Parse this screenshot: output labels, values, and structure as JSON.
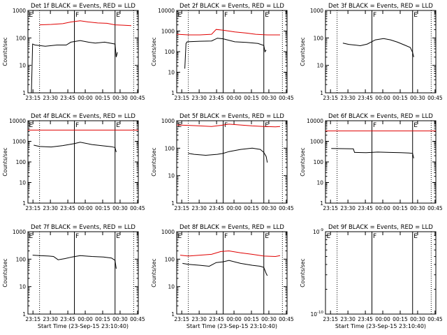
{
  "figure": {
    "background": "#ffffff",
    "axis_color": "#000000",
    "events_color": "#000000",
    "lld_color": "#e00000"
  },
  "chart_data": [
    {
      "type": "line",
      "title": "Det 1f BLACK = Events, RED = LLD",
      "xlabel": "",
      "ylabel": "Counts/sec",
      "yscale": "log",
      "ylim": [
        1,
        1000
      ],
      "yticks": [
        1,
        10,
        100,
        1000
      ],
      "ytick_labels": [
        "1",
        "10",
        "100",
        "1000"
      ],
      "xticks": [
        "23:15",
        "23:30",
        "23:45",
        "00:00",
        "00:15",
        "00:30",
        "00:45"
      ],
      "xlim_minutes": [
        0,
        95
      ],
      "markers": [
        {
          "label": "E",
          "t": 0,
          "style": "solid"
        },
        {
          "label": "F",
          "t": 40,
          "style": "solid"
        },
        {
          "label": "E",
          "t": 75,
          "style": "solid"
        }
      ],
      "dotted_lines": [
        10,
        91
      ],
      "series": [
        {
          "role": "lld",
          "points": [
            [
              10,
              300
            ],
            [
              20,
              310
            ],
            [
              30,
              330
            ],
            [
              37,
              380
            ],
            [
              45,
              420
            ],
            [
              52,
              380
            ],
            [
              60,
              350
            ],
            [
              68,
              340
            ],
            [
              75,
              300
            ],
            [
              82,
              290
            ],
            [
              89,
              280
            ]
          ]
        },
        {
          "role": "events",
          "points": [
            [
              0,
              1
            ],
            [
              3,
              1
            ],
            [
              4,
              60
            ],
            [
              6,
              55
            ],
            [
              15,
              50
            ],
            [
              25,
              55
            ],
            [
              33,
              55
            ],
            [
              37,
              70
            ],
            [
              45,
              80
            ],
            [
              52,
              70
            ],
            [
              58,
              65
            ],
            [
              66,
              70
            ],
            [
              75,
              60
            ],
            [
              76,
              20
            ],
            [
              77,
              30
            ]
          ]
        }
      ]
    },
    {
      "type": "line",
      "title": "Det 2f BLACK = Events, RED = LLD",
      "xlabel": "",
      "ylabel": "Counts/sec",
      "yscale": "log",
      "ylim": [
        1,
        10000
      ],
      "yticks": [
        1,
        10,
        100,
        1000,
        10000
      ],
      "ytick_labels": [
        "1",
        "10",
        "100",
        "1000",
        "10000"
      ],
      "xticks": [
        "23:15",
        "23:30",
        "23:45",
        "00:00",
        "00:15",
        "00:30",
        "00:45"
      ],
      "xlim_minutes": [
        0,
        95
      ],
      "markers": [
        {
          "label": "E",
          "t": 0,
          "style": "solid"
        },
        {
          "label": "F",
          "t": 40,
          "style": "solid"
        },
        {
          "label": "E",
          "t": 75,
          "style": "solid"
        }
      ],
      "dotted_lines": [
        10,
        91
      ],
      "series": [
        {
          "role": "lld",
          "points": [
            [
              0,
              700
            ],
            [
              10,
              650
            ],
            [
              20,
              650
            ],
            [
              30,
              700
            ],
            [
              34,
              1200
            ],
            [
              40,
              1100
            ],
            [
              50,
              900
            ],
            [
              60,
              800
            ],
            [
              68,
              700
            ],
            [
              78,
              650
            ],
            [
              89,
              650
            ]
          ]
        },
        {
          "role": "events",
          "points": [
            [
              7,
              15
            ],
            [
              8,
              250
            ],
            [
              9,
              300
            ],
            [
              20,
              320
            ],
            [
              30,
              330
            ],
            [
              35,
              450
            ],
            [
              40,
              420
            ],
            [
              50,
              300
            ],
            [
              60,
              280
            ],
            [
              70,
              250
            ],
            [
              75,
              200
            ],
            [
              76,
              100
            ],
            [
              77,
              120
            ]
          ]
        }
      ]
    },
    {
      "type": "line",
      "title": "Det 3f BLACK = Events, RED = LLD",
      "xlabel": "",
      "ylabel": "Counts/sec",
      "yscale": "log",
      "ylim": [
        1,
        1000
      ],
      "yticks": [
        1,
        10,
        100,
        1000
      ],
      "ytick_labels": [
        "1",
        "10",
        "100",
        "1000"
      ],
      "xticks": [
        "23:15",
        "23:30",
        "23:45",
        "00:00",
        "00:15",
        "00:30",
        "00:45"
      ],
      "xlim_minutes": [
        0,
        95
      ],
      "markers": [
        {
          "label": "F",
          "t": 40,
          "style": "solid"
        },
        {
          "label": "E",
          "t": 75,
          "style": "solid"
        }
      ],
      "dotted_lines": [
        10,
        91
      ],
      "series": [
        {
          "role": "events",
          "points": [
            [
              15,
              65
            ],
            [
              20,
              58
            ],
            [
              25,
              55
            ],
            [
              30,
              52
            ],
            [
              36,
              60
            ],
            [
              43,
              85
            ],
            [
              50,
              95
            ],
            [
              56,
              85
            ],
            [
              62,
              70
            ],
            [
              68,
              55
            ],
            [
              73,
              45
            ],
            [
              75,
              30
            ],
            [
              76,
              20
            ]
          ]
        }
      ]
    },
    {
      "type": "line",
      "title": "Det 4f BLACK = Events, RED = LLD",
      "xlabel": "",
      "ylabel": "Counts/sec",
      "yscale": "log",
      "ylim": [
        1,
        10000
      ],
      "yticks": [
        1,
        10,
        100,
        1000,
        10000
      ],
      "ytick_labels": [
        "1",
        "10",
        "100",
        "1000",
        "10000"
      ],
      "xticks": [
        "23:15",
        "23:30",
        "23:45",
        "00:00",
        "00:15",
        "00:30",
        "00:45"
      ],
      "xlim_minutes": [
        0,
        95
      ],
      "markers": [
        {
          "label": "E",
          "t": 0,
          "style": "solid"
        },
        {
          "label": "F",
          "t": 40,
          "style": "solid"
        },
        {
          "label": "E",
          "t": 75,
          "style": "solid"
        }
      ],
      "dotted_lines": [
        10,
        91
      ],
      "series": [
        {
          "role": "lld",
          "points": [
            [
              0,
              3500
            ],
            [
              95,
              3500
            ]
          ]
        },
        {
          "role": "events",
          "points": [
            [
              5,
              650
            ],
            [
              10,
              560
            ],
            [
              20,
              530
            ],
            [
              30,
              620
            ],
            [
              40,
              780
            ],
            [
              45,
              900
            ],
            [
              55,
              700
            ],
            [
              65,
              600
            ],
            [
              72,
              550
            ],
            [
              75,
              500
            ],
            [
              76,
              300
            ]
          ]
        }
      ]
    },
    {
      "type": "line",
      "title": "Det 5f BLACK = Events, RED = LLD",
      "xlabel": "",
      "ylabel": "Counts/sec",
      "yscale": "log",
      "ylim": [
        1,
        1000
      ],
      "yticks": [
        1,
        10,
        100,
        1000
      ],
      "ytick_labels": [
        "1",
        "10",
        "100",
        "1000"
      ],
      "xticks": [
        "23:15",
        "23:30",
        "23:45",
        "00:00",
        "00:15",
        "00:30",
        "00:45"
      ],
      "xlim_minutes": [
        0,
        95
      ],
      "markers": [
        {
          "label": "E",
          "t": 0,
          "style": "solid"
        },
        {
          "label": "F",
          "t": 40,
          "style": "solid"
        },
        {
          "label": "E",
          "t": 75,
          "style": "solid"
        }
      ],
      "dotted_lines": [
        10,
        91
      ],
      "series": [
        {
          "role": "lld",
          "points": [
            [
              0,
              700
            ],
            [
              10,
              680
            ],
            [
              20,
              650
            ],
            [
              30,
              620
            ],
            [
              38,
              680
            ],
            [
              45,
              750
            ],
            [
              55,
              700
            ],
            [
              65,
              650
            ],
            [
              75,
              620
            ],
            [
              85,
              600
            ],
            [
              89,
              620
            ]
          ]
        },
        {
          "role": "events",
          "points": [
            [
              10,
              65
            ],
            [
              15,
              60
            ],
            [
              25,
              55
            ],
            [
              35,
              60
            ],
            [
              40,
              65
            ],
            [
              45,
              75
            ],
            [
              55,
              90
            ],
            [
              65,
              100
            ],
            [
              72,
              90
            ],
            [
              75,
              70
            ],
            [
              77,
              50
            ],
            [
              78,
              30
            ]
          ]
        }
      ]
    },
    {
      "type": "line",
      "title": "Det 6f BLACK = Events, RED = LLD",
      "xlabel": "",
      "ylabel": "Counts/sec",
      "yscale": "log",
      "ylim": [
        1,
        10000
      ],
      "yticks": [
        1,
        10,
        100,
        1000,
        10000
      ],
      "ytick_labels": [
        "1",
        "10",
        "100",
        "1000",
        "10000"
      ],
      "xticks": [
        "23:15",
        "23:30",
        "23:45",
        "00:00",
        "00:15",
        "00:30",
        "00:45"
      ],
      "xlim_minutes": [
        0,
        95
      ],
      "markers": [
        {
          "label": "F",
          "t": 40,
          "style": "solid"
        },
        {
          "label": "E",
          "t": 75,
          "style": "solid"
        }
      ],
      "dotted_lines": [
        10,
        91
      ],
      "series": [
        {
          "role": "lld",
          "points": [
            [
              0,
              3200
            ],
            [
              95,
              3200
            ]
          ]
        },
        {
          "role": "events",
          "points": [
            [
              5,
              450
            ],
            [
              15,
              440
            ],
            [
              24,
              430
            ],
            [
              25,
              290
            ],
            [
              35,
              280
            ],
            [
              45,
              300
            ],
            [
              55,
              290
            ],
            [
              65,
              280
            ],
            [
              72,
              270
            ],
            [
              75,
              260
            ],
            [
              76,
              150
            ]
          ]
        }
      ]
    },
    {
      "type": "line",
      "title": "Det 7f BLACK = Events, RED = LLD",
      "xlabel": "Start Time (23-Sep-15 23:10:40)",
      "ylabel": "Counts/sec",
      "yscale": "log",
      "ylim": [
        1,
        1000
      ],
      "yticks": [
        1,
        10,
        100,
        1000
      ],
      "ytick_labels": [
        "1",
        "10",
        "100",
        "1000"
      ],
      "xticks": [
        "23:15",
        "23:30",
        "23:45",
        "00:00",
        "00:15",
        "00:30",
        "00:45"
      ],
      "xlim_minutes": [
        0,
        95
      ],
      "markers": [
        {
          "label": "E",
          "t": 0,
          "style": "solid"
        },
        {
          "label": "F",
          "t": 40,
          "style": "solid"
        },
        {
          "label": "E",
          "t": 75,
          "style": "solid"
        }
      ],
      "dotted_lines": [
        10,
        91
      ],
      "series": [
        {
          "role": "events",
          "points": [
            [
              4,
              140
            ],
            [
              10,
              135
            ],
            [
              18,
              130
            ],
            [
              22,
              125
            ],
            [
              26,
              95
            ],
            [
              32,
              105
            ],
            [
              38,
              120
            ],
            [
              45,
              135
            ],
            [
              55,
              125
            ],
            [
              65,
              120
            ],
            [
              72,
              110
            ],
            [
              75,
              90
            ],
            [
              76,
              45
            ]
          ]
        }
      ]
    },
    {
      "type": "line",
      "title": "Det 8f BLACK = Events, RED = LLD",
      "xlabel": "Start Time (23-Sep-15 23:10:40)",
      "ylabel": "Counts/sec",
      "yscale": "log",
      "ylim": [
        1,
        1000
      ],
      "yticks": [
        1,
        10,
        100,
        1000
      ],
      "ytick_labels": [
        "1",
        "10",
        "100",
        "1000"
      ],
      "xticks": [
        "23:15",
        "23:30",
        "23:45",
        "00:00",
        "00:15",
        "00:30",
        "00:45"
      ],
      "xlim_minutes": [
        0,
        95
      ],
      "markers": [
        {
          "label": "E",
          "t": 0,
          "style": "solid"
        },
        {
          "label": "F",
          "t": 40,
          "style": "solid"
        },
        {
          "label": "E",
          "t": 75,
          "style": "solid"
        }
      ],
      "dotted_lines": [
        10,
        91
      ],
      "series": [
        {
          "role": "lld",
          "points": [
            [
              3,
              140
            ],
            [
              10,
              130
            ],
            [
              20,
              140
            ],
            [
              30,
              150
            ],
            [
              38,
              190
            ],
            [
              45,
              200
            ],
            [
              55,
              170
            ],
            [
              65,
              150
            ],
            [
              75,
              130
            ],
            [
              85,
              125
            ],
            [
              89,
              135
            ]
          ]
        },
        {
          "role": "events",
          "points": [
            [
              5,
              70
            ],
            [
              10,
              65
            ],
            [
              20,
              60
            ],
            [
              28,
              55
            ],
            [
              34,
              75
            ],
            [
              40,
              80
            ],
            [
              45,
              90
            ],
            [
              55,
              70
            ],
            [
              65,
              60
            ],
            [
              72,
              55
            ],
            [
              75,
              50
            ],
            [
              77,
              30
            ],
            [
              78,
              25
            ]
          ]
        }
      ]
    },
    {
      "type": "line",
      "title": "Det 9f BLACK = Events, RED = LLD",
      "xlabel": "Start Time (23-Sep-15 23:10:40)",
      "ylabel": "Counts/sec",
      "yscale": "log",
      "ylim": [
        1e-10,
        1e-09
      ],
      "yticks": [
        1e-10,
        1e-09
      ],
      "ytick_labels": [
        "10^{-10}",
        "10^{-9}"
      ],
      "xticks": [
        "23:15",
        "23:30",
        "23:45",
        "00:00",
        "00:15",
        "00:30",
        "00:45"
      ],
      "xlim_minutes": [
        0,
        95
      ],
      "markers": [
        {
          "label": "E",
          "t": 0,
          "style": "solid"
        },
        {
          "label": "F",
          "t": 40,
          "style": "solid"
        },
        {
          "label": "E",
          "t": 75,
          "style": "solid"
        }
      ],
      "dotted_lines": [
        10,
        91
      ],
      "series": []
    }
  ]
}
